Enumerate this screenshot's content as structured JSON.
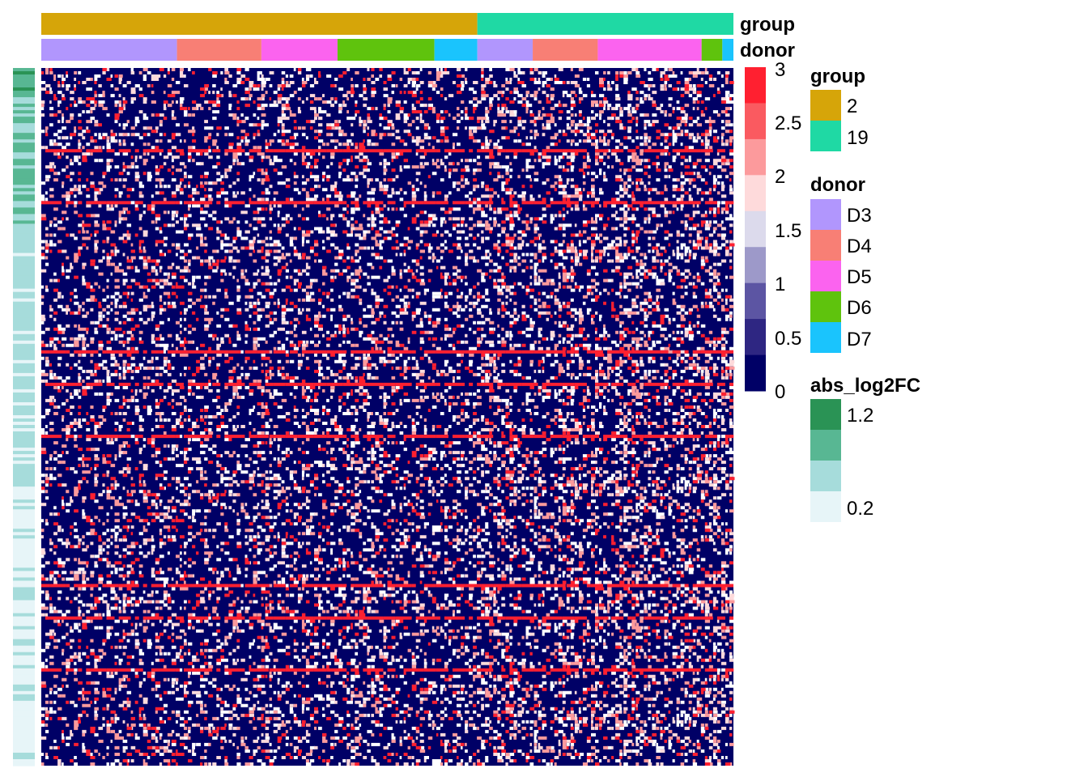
{
  "chart_data": {
    "type": "heatmap",
    "title": "",
    "column_annotations": {
      "group": {
        "label": "group",
        "segments": [
          {
            "level": "2",
            "fraction": 0.63
          },
          {
            "level": "19",
            "fraction": 0.37
          }
        ]
      },
      "donor": {
        "label": "donor",
        "segments": [
          {
            "level": "D3",
            "fraction": 0.196
          },
          {
            "level": "D4",
            "fraction": 0.122
          },
          {
            "level": "D5",
            "fraction": 0.11
          },
          {
            "level": "D6",
            "fraction": 0.14
          },
          {
            "level": "D7",
            "fraction": 0.062
          },
          {
            "level": "D3",
            "fraction": 0.08
          },
          {
            "level": "D4",
            "fraction": 0.094
          },
          {
            "level": "D5",
            "fraction": 0.15
          },
          {
            "level": "D6",
            "fraction": 0.03
          },
          {
            "level": "D7",
            "fraction": 0.016
          }
        ]
      }
    },
    "row_annotation": {
      "label": "abs_log2FC",
      "range": [
        0.2,
        1.2
      ]
    },
    "color_scale": {
      "min": 0,
      "max": 3,
      "breaks": [
        0,
        0.375,
        0.75,
        1.125,
        1.5,
        1.875,
        2.25,
        2.625,
        3
      ],
      "colors": [
        "#000066",
        "#2e2682",
        "#5c55a3",
        "#9d99c9",
        "#dcdaec",
        "#fedadb",
        "#fc9a9c",
        "#fa5a60",
        "#ff2030"
      ],
      "tick_labels": [
        "3",
        "2.5",
        "2",
        "1.5",
        "1",
        "0.5",
        "0"
      ]
    },
    "legends": {
      "group": {
        "title": "group",
        "items": [
          {
            "label": "2",
            "color": "#d6a509"
          },
          {
            "label": "19",
            "color": "#1fd9a4"
          }
        ]
      },
      "donor": {
        "title": "donor",
        "items": [
          {
            "label": "D3",
            "color": "#b196fd"
          },
          {
            "label": "D4",
            "color": "#f87f75"
          },
          {
            "label": "D5",
            "color": "#fb63ef"
          },
          {
            "label": "D6",
            "color": "#5fc30d"
          },
          {
            "label": "D7",
            "color": "#1ac4fd"
          }
        ]
      },
      "abs_log2FC": {
        "title": "abs_log2FC",
        "items": [
          {
            "label": "1.2",
            "color": "#2a9355"
          },
          {
            "label": "",
            "color": "#58b793"
          },
          {
            "label": "",
            "color": "#a6dcdb"
          },
          {
            "label": "0.2",
            "color": "#e7f5f8"
          }
        ]
      }
    }
  }
}
